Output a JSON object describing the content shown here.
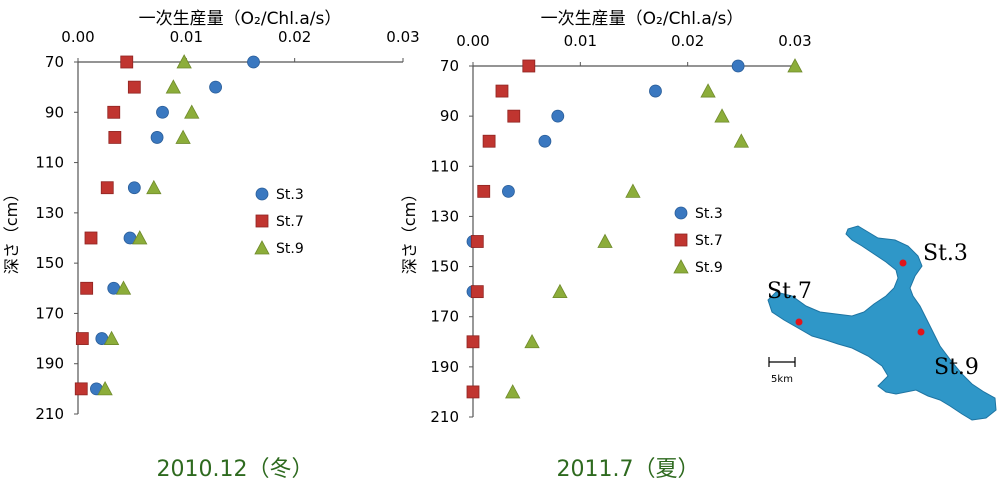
{
  "colors": {
    "st3": "#3a78c0",
    "st7": "#c03530",
    "st9": "#8cad3a",
    "lake": "#2f97c8",
    "lake_edge": "#1e74a2",
    "station_dot": "#e0151b",
    "period_text": "#2e6a1f"
  },
  "chart_data": [
    {
      "type": "scatter",
      "title": "2010.12（冬）",
      "xlabel": "一次生産量（O₂/Chl.a/s）",
      "ylabel": "深さ（cm）",
      "xlim": [
        0,
        0.03
      ],
      "ylim": [
        70,
        210
      ],
      "x_ticks": [
        "0.00",
        "0.01",
        "0.02",
        "0.03"
      ],
      "y_ticks": [
        "70",
        "90",
        "110",
        "130",
        "150",
        "170",
        "190",
        "210"
      ],
      "series": [
        {
          "name": "St.3",
          "marker": "circle",
          "points": [
            [
              0.0162,
              70
            ],
            [
              0.0127,
              80
            ],
            [
              0.0078,
              90
            ],
            [
              0.0073,
              100
            ],
            [
              0.0052,
              120
            ],
            [
              0.0048,
              140
            ],
            [
              0.0033,
              160
            ],
            [
              0.0022,
              180
            ],
            [
              0.0017,
              200
            ]
          ]
        },
        {
          "name": "St.7",
          "marker": "square",
          "points": [
            [
              0.0045,
              70
            ],
            [
              0.0052,
              80
            ],
            [
              0.0033,
              90
            ],
            [
              0.0034,
              100
            ],
            [
              0.0027,
              120
            ],
            [
              0.0012,
              140
            ],
            [
              0.0008,
              160
            ],
            [
              0.0004,
              180
            ],
            [
              0.0003,
              200
            ]
          ]
        },
        {
          "name": "St.9",
          "marker": "triangle",
          "points": [
            [
              0.0098,
              70
            ],
            [
              0.0088,
              80
            ],
            [
              0.0105,
              90
            ],
            [
              0.0097,
              100
            ],
            [
              0.007,
              120
            ],
            [
              0.0057,
              140
            ],
            [
              0.0042,
              160
            ],
            [
              0.0031,
              180
            ],
            [
              0.0025,
              200
            ]
          ]
        }
      ]
    },
    {
      "type": "scatter",
      "title": "2011.7（夏）",
      "xlabel": "一次生産量（O₂/Chl.a/s）",
      "ylabel": "深さ（cm）",
      "xlim": [
        0,
        0.03
      ],
      "ylim": [
        70,
        210
      ],
      "x_ticks": [
        "0.00",
        "0.01",
        "0.02",
        "0.03"
      ],
      "y_ticks": [
        "70",
        "90",
        "110",
        "130",
        "150",
        "170",
        "190",
        "210"
      ],
      "series": [
        {
          "name": "St.3",
          "marker": "circle",
          "points": [
            [
              0.0247,
              70
            ],
            [
              0.017,
              80
            ],
            [
              0.0079,
              90
            ],
            [
              0.0067,
              100
            ],
            [
              0.0033,
              120
            ],
            [
              0.0,
              140
            ],
            [
              0.0,
              160
            ]
          ]
        },
        {
          "name": "St.7",
          "marker": "square",
          "points": [
            [
              0.0052,
              70
            ],
            [
              0.0027,
              80
            ],
            [
              0.0038,
              90
            ],
            [
              0.0015,
              100
            ],
            [
              0.001,
              120
            ],
            [
              0.0004,
              140
            ],
            [
              0.0004,
              160
            ],
            [
              0.0,
              180
            ],
            [
              0.0,
              200
            ]
          ]
        },
        {
          "name": "St.9",
          "marker": "triangle",
          "points": [
            [
              0.03,
              70
            ],
            [
              0.0219,
              80
            ],
            [
              0.0232,
              90
            ],
            [
              0.025,
              100
            ],
            [
              0.0149,
              120
            ],
            [
              0.0123,
              140
            ],
            [
              0.0081,
              160
            ],
            [
              0.0055,
              180
            ],
            [
              0.0037,
              200
            ]
          ]
        }
      ]
    }
  ],
  "map": {
    "stations": [
      "St.3",
      "St.7",
      "St.9"
    ],
    "scale_label": "5km"
  }
}
